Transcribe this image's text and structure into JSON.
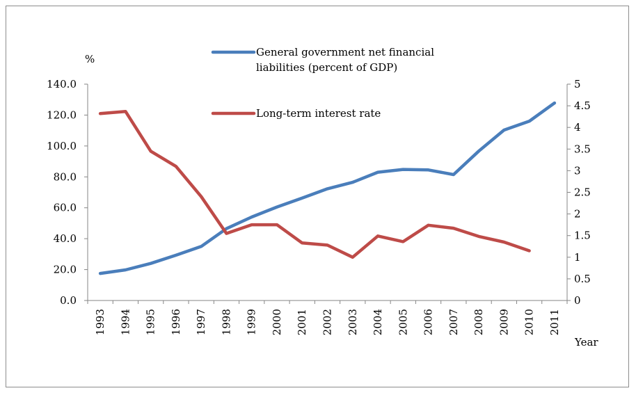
{
  "chart_data": {
    "type": "line",
    "title": "",
    "ylabel_left": "%",
    "xlabel": "Year",
    "categories": [
      "1993",
      "1994",
      "1995",
      "1996",
      "1997",
      "1998",
      "1999",
      "2000",
      "2001",
      "2002",
      "2003",
      "2004",
      "2005",
      "2006",
      "2007",
      "2008",
      "2009",
      "2010",
      "2011"
    ],
    "y_left": {
      "range": [
        0,
        140
      ],
      "ticks": [
        "0.0",
        "20.0",
        "40.0",
        "60.0",
        "80.0",
        "100.0",
        "120.0",
        "140.0"
      ]
    },
    "y_right": {
      "range": [
        0,
        5
      ],
      "ticks": [
        "0",
        "0.5",
        "1",
        "1.5",
        "2",
        "2.5",
        "3",
        "3.5",
        "4",
        "4.5",
        "5"
      ]
    },
    "series": [
      {
        "name": "General government net financial liabilities (percent of GDP)",
        "name_lines": [
          "General government net financial",
          "liabilities (percent of GDP)"
        ],
        "axis": "left",
        "color": "#4a7ebb",
        "values": [
          17.5,
          19.8,
          24.0,
          29.3,
          35.0,
          46.5,
          54.0,
          60.5,
          66.3,
          72.3,
          76.5,
          83.0,
          84.8,
          84.5,
          81.5,
          96.7,
          110.3,
          116.0,
          127.8
        ]
      },
      {
        "name": "Long-term interest rate",
        "name_lines": [
          "Long-term interest rate"
        ],
        "axis": "right",
        "color": "#be4b48",
        "values": [
          4.32,
          4.37,
          3.45,
          3.1,
          2.4,
          1.55,
          1.75,
          1.75,
          1.33,
          1.28,
          1.0,
          1.49,
          1.36,
          1.74,
          1.67,
          1.48,
          1.35,
          1.15,
          null
        ]
      }
    ],
    "grid": false,
    "legend_position": "top-right"
  }
}
